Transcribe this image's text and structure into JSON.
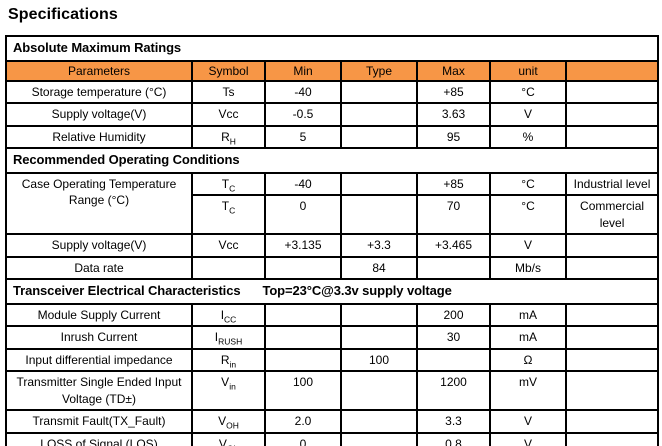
{
  "page_title": "Specifications",
  "colors": {
    "header_bg": "#F79646",
    "border": "#000000",
    "text": "#000000"
  },
  "table": {
    "rows": [
      {
        "type": "section",
        "cells": [
          {
            "t": "Absolute Maximum Ratings",
            "colspan": 7
          }
        ]
      },
      {
        "type": "header",
        "cells": [
          {
            "t": "Parameters"
          },
          {
            "t": "Symbol"
          },
          {
            "t": "Min"
          },
          {
            "t": "Type"
          },
          {
            "t": "Max"
          },
          {
            "t": "unit"
          },
          {
            "t": ""
          }
        ]
      },
      {
        "type": "data",
        "cells": [
          {
            "t": "Storage temperature (°C)",
            "cls": "param"
          },
          {
            "t": "Ts"
          },
          {
            "t": "-40"
          },
          {
            "t": ""
          },
          {
            "t": "+85"
          },
          {
            "t": "°C"
          },
          {
            "t": "",
            "cls": "last"
          }
        ]
      },
      {
        "type": "data",
        "cells": [
          {
            "t": "Supply voltage(V)",
            "cls": "param"
          },
          {
            "t": "Vcc"
          },
          {
            "t": "-0.5"
          },
          {
            "t": ""
          },
          {
            "t": "3.63"
          },
          {
            "t": "V"
          },
          {
            "t": "",
            "cls": "last"
          }
        ]
      },
      {
        "type": "data",
        "cells": [
          {
            "t": "Relative Humidity",
            "cls": "param"
          },
          {
            "t": "R~H~"
          },
          {
            "t": "5"
          },
          {
            "t": ""
          },
          {
            "t": "95"
          },
          {
            "t": "%"
          },
          {
            "t": "",
            "cls": "last"
          }
        ]
      },
      {
        "type": "section",
        "cells": [
          {
            "t": "Recommended Operating Conditions",
            "colspan": 7
          }
        ]
      },
      {
        "type": "data",
        "cells": [
          {
            "t": "Case Operating Temperature Range (°C)",
            "cls": "param",
            "rowspan": 2
          },
          {
            "t": "T~C~"
          },
          {
            "t": "-40"
          },
          {
            "t": ""
          },
          {
            "t": "+85"
          },
          {
            "t": "°C"
          },
          {
            "t": "Industrial level",
            "cls": "last"
          }
        ]
      },
      {
        "type": "data",
        "cells": [
          {
            "t": "T~C~"
          },
          {
            "t": "0"
          },
          {
            "t": ""
          },
          {
            "t": "70"
          },
          {
            "t": "°C"
          },
          {
            "t": "Commercial level",
            "cls": "last"
          }
        ]
      },
      {
        "type": "data",
        "cells": [
          {
            "t": "Supply voltage(V)",
            "cls": "param"
          },
          {
            "t": "Vcc"
          },
          {
            "t": "+3.135"
          },
          {
            "t": "+3.3"
          },
          {
            "t": "+3.465"
          },
          {
            "t": "V"
          },
          {
            "t": "",
            "cls": "last"
          }
        ]
      },
      {
        "type": "data",
        "cells": [
          {
            "t": "Data rate",
            "cls": "param"
          },
          {
            "t": ""
          },
          {
            "t": ""
          },
          {
            "t": "84"
          },
          {
            "t": ""
          },
          {
            "t": "Mb/s"
          },
          {
            "t": "",
            "cls": "last"
          }
        ]
      },
      {
        "type": "section",
        "cells": [
          {
            "t": "Transceiver Electrical Characteristics",
            "t2": "Top=23°C@3.3v supply voltage",
            "colspan": 7
          }
        ]
      },
      {
        "type": "data",
        "cells": [
          {
            "t": "Module Supply Current",
            "cls": "param"
          },
          {
            "t": "I~CC~"
          },
          {
            "t": ""
          },
          {
            "t": ""
          },
          {
            "t": "200"
          },
          {
            "t": "mA"
          },
          {
            "t": "",
            "cls": "last"
          }
        ]
      },
      {
        "type": "data",
        "cells": [
          {
            "t": "Inrush Current",
            "cls": "param"
          },
          {
            "t": "I~RUSH~"
          },
          {
            "t": ""
          },
          {
            "t": ""
          },
          {
            "t": "30"
          },
          {
            "t": "mA"
          },
          {
            "t": "",
            "cls": "last"
          }
        ]
      },
      {
        "type": "data",
        "cells": [
          {
            "t": "Input differential impedance",
            "cls": "param"
          },
          {
            "t": "R~in~"
          },
          {
            "t": ""
          },
          {
            "t": "100"
          },
          {
            "t": ""
          },
          {
            "t": "Ω"
          },
          {
            "t": "",
            "cls": "last"
          }
        ]
      },
      {
        "type": "data",
        "cells": [
          {
            "t": "Transmitter Single Ended Input Voltage (TD±)",
            "cls": "param"
          },
          {
            "t": "V~in~"
          },
          {
            "t": "100"
          },
          {
            "t": ""
          },
          {
            "t": "1200"
          },
          {
            "t": "mV"
          },
          {
            "t": "",
            "cls": "last"
          }
        ]
      },
      {
        "type": "data",
        "cells": [
          {
            "t": "Transmit Fault(TX_Fault)",
            "cls": "param"
          },
          {
            "t": "V~OH~"
          },
          {
            "t": "2.0"
          },
          {
            "t": ""
          },
          {
            "t": "3.3"
          },
          {
            "t": "V"
          },
          {
            "t": "",
            "cls": "last"
          }
        ]
      },
      {
        "type": "data",
        "cells": [
          {
            "t": "LOSS of Signal (LOS)",
            "cls": "param"
          },
          {
            "t": "V~OL~"
          },
          {
            "t": "0"
          },
          {
            "t": ""
          },
          {
            "t": "0.8"
          },
          {
            "t": "V"
          },
          {
            "t": "",
            "cls": "last"
          }
        ]
      }
    ]
  }
}
